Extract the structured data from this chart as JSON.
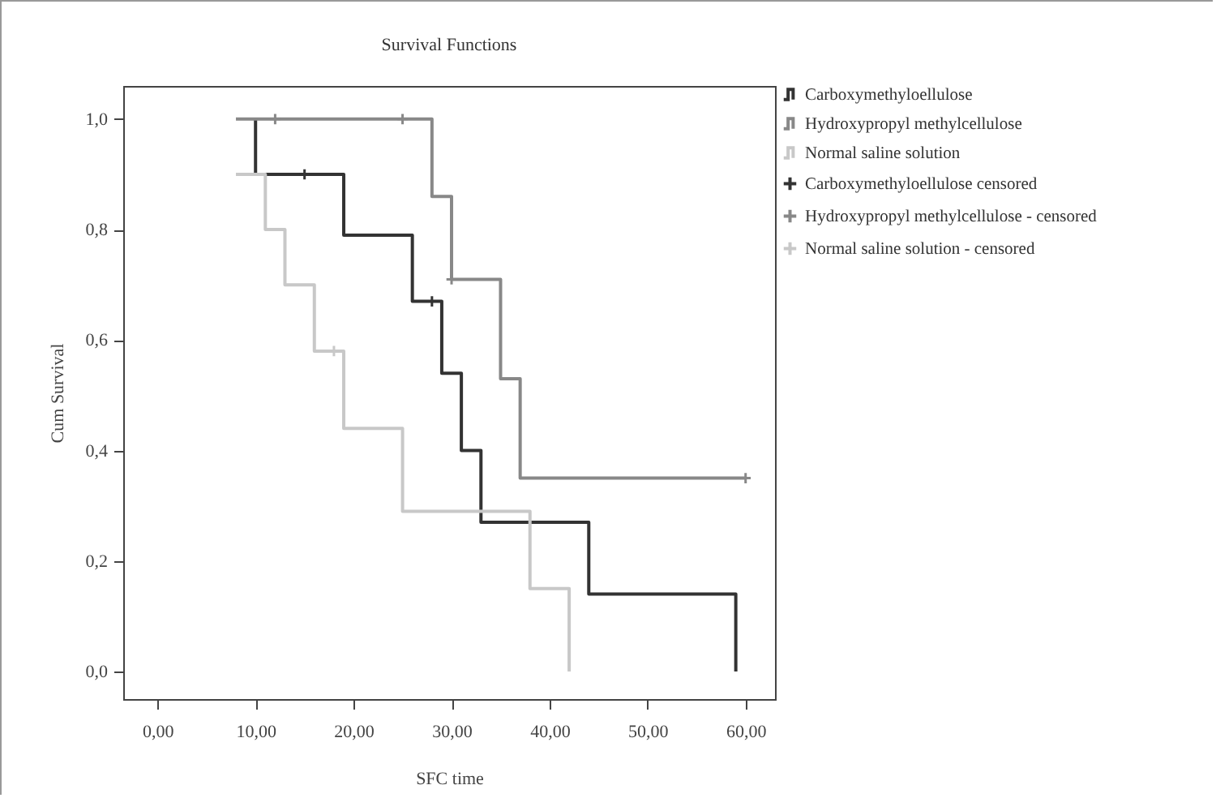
{
  "chart_data": {
    "type": "step",
    "title": "Survival Functions",
    "xlabel": "SFC time",
    "ylabel": "Cum Survival",
    "xlim": [
      -3.5,
      63
    ],
    "ylim": [
      -0.05,
      1.06
    ],
    "xticks": [
      {
        "value": 0,
        "label": "0,00"
      },
      {
        "value": 10,
        "label": "10,00"
      },
      {
        "value": 20,
        "label": "20,00"
      },
      {
        "value": 30,
        "label": "30,00"
      },
      {
        "value": 40,
        "label": "40,00"
      },
      {
        "value": 50,
        "label": "50,00"
      },
      {
        "value": 60,
        "label": "60,00"
      }
    ],
    "yticks": [
      {
        "value": 0,
        "label": "0,0"
      },
      {
        "value": 0.2,
        "label": "0,2"
      },
      {
        "value": 0.4,
        "label": "0,4"
      },
      {
        "value": 0.6,
        "label": "0,6"
      },
      {
        "value": 0.8,
        "label": "0,8"
      },
      {
        "value": 1,
        "label": "1,0"
      }
    ],
    "legend": "right",
    "grid": false,
    "series": [
      {
        "name": "Carboxymethyloellulose",
        "color": "#333333",
        "x": [
          10,
          10,
          19,
          26,
          29,
          31,
          33,
          44,
          59
        ],
        "values": [
          1,
          0.9,
          0.79,
          0.67,
          0.54,
          0.4,
          0.27,
          0.14,
          0
        ]
      },
      {
        "name": "Hydroxypropyl methylcellulose",
        "color": "#888888",
        "x": [
          8,
          28,
          30,
          35,
          37,
          60
        ],
        "values": [
          1,
          0.86,
          0.71,
          0.53,
          0.35,
          0.35
        ]
      },
      {
        "name": "Normal saline solution",
        "color": "#c8c8c8",
        "x": [
          8,
          11,
          13,
          16,
          19,
          25,
          38,
          42
        ],
        "values": [
          0.9,
          0.8,
          0.7,
          0.58,
          0.44,
          0.29,
          0.15,
          0
        ]
      },
      {
        "name": "Carboxymethyloellulose censored",
        "type": "scatter",
        "marker": "cross",
        "color": "#333333",
        "x": [
          15,
          28
        ],
        "values": [
          0.9,
          0.67
        ]
      },
      {
        "name": "Hydroxypropyl methylcellulose - censored",
        "type": "scatter",
        "marker": "cross",
        "color": "#888888",
        "x": [
          12,
          25,
          30,
          60
        ],
        "values": [
          1,
          1,
          0.71,
          0.35
        ]
      },
      {
        "name": "Normal saline solution - censored",
        "type": "scatter",
        "marker": "cross",
        "color": "#c8c8c8",
        "x": [
          18
        ],
        "values": [
          0.58
        ]
      }
    ]
  }
}
